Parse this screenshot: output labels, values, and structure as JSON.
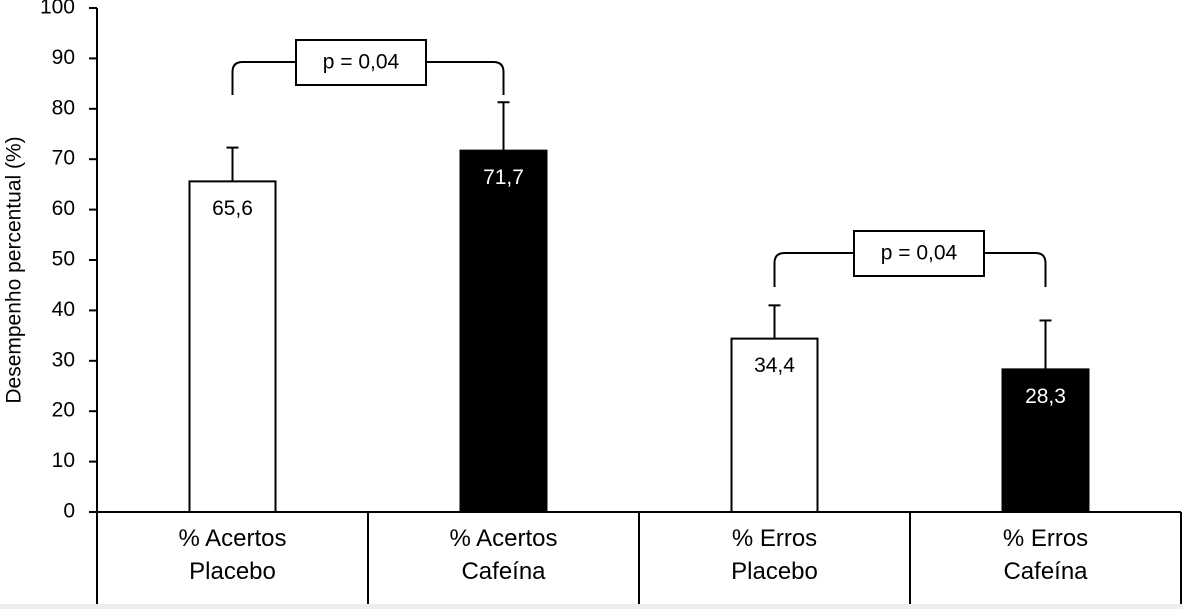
{
  "chart_data": {
    "type": "bar",
    "y_label": "Desempenho percentual (%)",
    "categories": [
      "% Acertos\nPlacebo",
      "% Acertos\nCafeína",
      "% Erros\nPlacebo",
      "% Erros\nCafeína"
    ],
    "values": [
      65.6,
      71.7,
      34.4,
      28.3
    ],
    "value_labels": [
      "65,6",
      "71,7",
      "34,4",
      "28,3"
    ],
    "errors": [
      6.7,
      9.6,
      6.6,
      9.7
    ],
    "colors": [
      "#ffffff",
      "#000000",
      "#ffffff",
      "#000000"
    ],
    "ylim": [
      0,
      100
    ],
    "yticks": [
      0,
      10,
      20,
      30,
      40,
      50,
      60,
      70,
      80,
      90,
      100
    ],
    "annotations": [
      "p = 0,04",
      "p = 0,04"
    ]
  }
}
